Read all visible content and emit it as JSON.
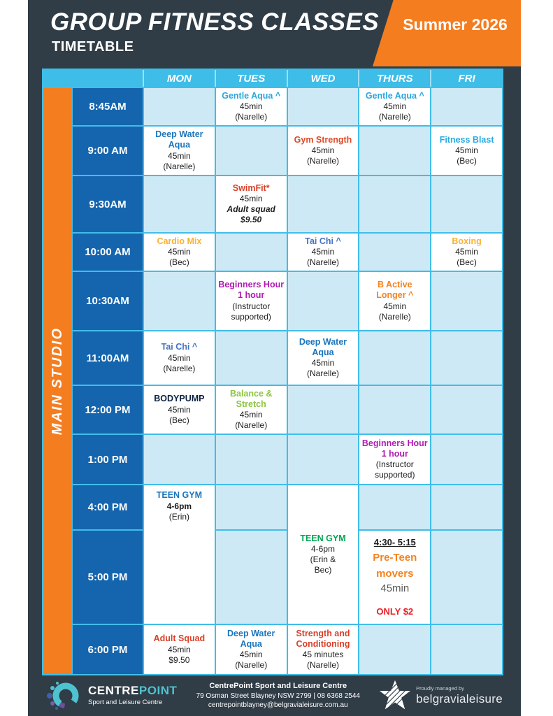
{
  "page": {
    "title": "GROUP FITNESS CLASSES",
    "subtitle": "TIMETABLE",
    "season_badge": "Summer 2026"
  },
  "colors": {
    "card_bg": "#303C46",
    "accent_orange": "#F47D20",
    "header_blue": "#3EBDE8",
    "grid_line_blue": "#41BDE8",
    "time_col_blue": "#1565AE",
    "empty_cell_blue": "#CDE9F6",
    "filled_cell_white": "#FFFFFF"
  },
  "timetable": {
    "studio_label": "MAIN STUDIO",
    "day_headers": [
      "MON",
      "TUES",
      "WED",
      "THURS",
      "FRI"
    ],
    "rows": [
      {
        "time": "8:45AM",
        "cells": [
          {
            "day": "TUES",
            "title": "Gentle Aqua ^",
            "title_color": "#2BA7DD",
            "lines": [
              {
                "text": "45min"
              },
              {
                "text": "(Narelle)"
              }
            ]
          },
          {
            "day": "THURS",
            "title": "Gentle Aqua ^",
            "title_color": "#2BA7DD",
            "lines": [
              {
                "text": "45min"
              },
              {
                "text": "(Narelle)"
              }
            ]
          }
        ]
      },
      {
        "time": "9:00 AM",
        "cells": [
          {
            "day": "MON",
            "title": "Deep Water Aqua",
            "title_color": "#1B75BC",
            "lines": [
              {
                "text": "45min"
              },
              {
                "text": "(Narelle)"
              }
            ]
          },
          {
            "day": "WED",
            "title": "Gym Strength",
            "title_color": "#E04A26",
            "lines": [
              {
                "text": "45min"
              },
              {
                "text": "(Narelle)"
              }
            ]
          },
          {
            "day": "FRI",
            "title": "Fitness Blast",
            "title_color": "#29ABE2",
            "lines": [
              {
                "text": "45min"
              },
              {
                "text": "(Bec)"
              }
            ]
          }
        ]
      },
      {
        "time": "9:30AM",
        "cells": [
          {
            "day": "TUES",
            "title": "SwimFit*",
            "title_color": "#D9402A",
            "lines": [
              {
                "text": "45min"
              },
              {
                "text": "Adult squad",
                "style": "bolditalic"
              },
              {
                "text": "$9.50",
                "style": "bolditalic"
              }
            ]
          }
        ]
      },
      {
        "time": "10:00 AM",
        "cells": [
          {
            "day": "MON",
            "title": "Cardio Mix",
            "title_color": "#F9B233",
            "lines": [
              {
                "text": "45min"
              },
              {
                "text": "(Bec)"
              }
            ]
          },
          {
            "day": "WED",
            "title": "Tai Chi ^",
            "title_color": "#4472C4",
            "lines": [
              {
                "text": "45min"
              },
              {
                "text": "(Narelle)"
              }
            ]
          },
          {
            "day": "FRI",
            "title": "Boxing",
            "title_color": "#F9B233",
            "lines": [
              {
                "text": "45min"
              },
              {
                "text": "(Bec)"
              }
            ]
          }
        ]
      },
      {
        "time": "10:30AM",
        "cells": [
          {
            "day": "TUES",
            "title": "Beginners Hour 1 hour",
            "title_color": "#B01BB5",
            "lines": [
              {
                "text": "(Instructor"
              },
              {
                "text": "supported)"
              }
            ]
          },
          {
            "day": "THURS",
            "title": "B Active Longer ^",
            "title_color": "#F5821F",
            "lines": [
              {
                "text": "45min"
              },
              {
                "text": "(Narelle)"
              }
            ]
          }
        ]
      },
      {
        "time": "11:00AM",
        "cells": [
          {
            "day": "MON",
            "title": "Tai Chi ^",
            "title_color": "#4472C4",
            "lines": [
              {
                "text": "45min"
              },
              {
                "text": "(Narelle)"
              }
            ]
          },
          {
            "day": "WED",
            "title": "Deep Water Aqua",
            "title_color": "#1B75BC",
            "lines": [
              {
                "text": "45min"
              },
              {
                "text": "(Narelle)"
              }
            ]
          }
        ]
      },
      {
        "time": "12:00 PM",
        "cells": [
          {
            "day": "MON",
            "title": "BODYPUMP",
            "title_color": "#0D2240",
            "lines": [
              {
                "text": "45min"
              },
              {
                "text": "(Bec)"
              }
            ]
          },
          {
            "day": "TUES",
            "title": "Balance & Stretch",
            "title_color": "#8CC63F",
            "lines": [
              {
                "text": "45min"
              },
              {
                "text": "(Narelle)"
              }
            ]
          }
        ]
      },
      {
        "time": "1:00 PM",
        "cells": [
          {
            "day": "THURS",
            "title": "Beginners Hour 1 hour",
            "title_color": "#B01BB5",
            "lines": [
              {
                "text": "(Instructor"
              },
              {
                "text": "supported)"
              }
            ]
          }
        ]
      },
      {
        "time": "4:00 PM",
        "cells": [
          {
            "day": "MON",
            "title": "TEEN GYM",
            "title_color": "#1B75BC",
            "rowspan": 2,
            "valign": "top",
            "lines": [
              {
                "text": "4-6pm",
                "style": "bold"
              },
              {
                "text": "(Erin)"
              }
            ]
          },
          {
            "day": "WED",
            "title": "TEEN GYM",
            "title_color": "#00A651",
            "rowspan": 2,
            "lines": [
              {
                "text": "4-6pm"
              },
              {
                "text": "(Erin &"
              },
              {
                "text": "Bec)"
              }
            ]
          }
        ]
      },
      {
        "time": "5:00 PM",
        "cells": [
          {
            "day": "THURS",
            "lines": [
              {
                "text": "4:30- 5:15",
                "style": "underline"
              },
              {
                "text": "Pre-Teen",
                "style": "orange-lg"
              },
              {
                "text": "movers",
                "style": "orange-lg"
              },
              {
                "text": "45min",
                "style": "gray-lg"
              },
              {
                "text": "",
                "style": "spacer"
              },
              {
                "text": "ONLY $2",
                "style": "red-bold"
              }
            ]
          }
        ]
      },
      {
        "time": "6:00 PM",
        "cells": [
          {
            "day": "MON",
            "title": "Adult Squad",
            "title_color": "#D9402A",
            "lines": [
              {
                "text": "45min"
              },
              {
                "text": "$9.50"
              }
            ]
          },
          {
            "day": "TUES",
            "title": "Deep Water Aqua",
            "title_color": "#1B75BC",
            "lines": [
              {
                "text": "45min"
              },
              {
                "text": "(Narelle)"
              }
            ]
          },
          {
            "day": "WED",
            "title": "Strength and Conditioning",
            "title_color": "#D9402A",
            "lines": [
              {
                "text": "45 minutes"
              },
              {
                "text": "(Narelle)"
              }
            ]
          }
        ]
      }
    ]
  },
  "footer": {
    "venue_line1": "CentrePoint Sport and Leisure Centre",
    "venue_line2": "79 Osman Street Blayney NSW 2799  |  08 6368 2544",
    "venue_line3": "centrepointblayney@belgravialeisure.com.au",
    "logo": {
      "brand_part1": "CENTRE",
      "brand_part2": "POINT",
      "tagline": "Sport and Leisure Centre"
    },
    "managed_by": {
      "label": "Proudly managed by",
      "brand": "belgravialeisure"
    }
  }
}
